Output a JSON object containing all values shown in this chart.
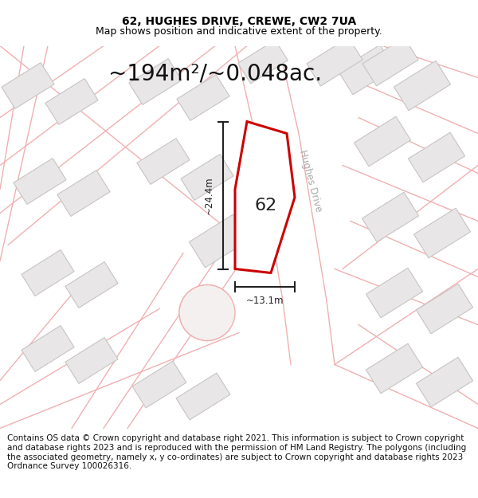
{
  "title_line1": "62, HUGHES DRIVE, CREWE, CW2 7UA",
  "title_line2": "Map shows position and indicative extent of the property.",
  "area_label": "~194m²/~0.048ac.",
  "plot_number": "62",
  "dim_width": "~13.1m",
  "dim_height": "~24.4m",
  "street_label": "Hughes Drive",
  "footer_text": "Contains OS data © Crown copyright and database right 2021. This information is subject to Crown copyright and database rights 2023 and is reproduced with the permission of HM Land Registry. The polygons (including the associated geometry, namely x, y co-ordinates) are subject to Crown copyright and database rights 2023 Ordnance Survey 100026316.",
  "bg_color": "#ffffff",
  "map_bg": "#ffffff",
  "plot_fill": "#ffffff",
  "plot_edge": "#cc0000",
  "road_line_color": "#f0b0b0",
  "road_fill_color": "#fde8e8",
  "building_fill": "#e8e6e6",
  "building_edge": "#c8c4c4",
  "title_fontsize": 10,
  "subtitle_fontsize": 9,
  "area_fontsize": 20,
  "plot_num_fontsize": 16,
  "footer_fontsize": 7.5,
  "street_label_color": "#aaaaaa",
  "dim_line_color": "#222222"
}
